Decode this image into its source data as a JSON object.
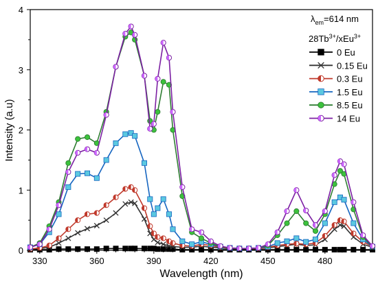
{
  "chart_data": {
    "type": "line",
    "xlabel": "Wavelength (nm)",
    "ylabel": "Intensity (a.u)",
    "xlim": [
      325,
      505
    ],
    "ylim": [
      0,
      4
    ],
    "xticks": [
      330,
      360,
      390,
      420,
      450,
      480
    ],
    "yticks": [
      0,
      1,
      2,
      3,
      4
    ],
    "grid": false,
    "legend_position": "top-right",
    "annotation": {
      "lambda": "λ",
      "sub": "em",
      "rest": "=614  nm"
    },
    "legend_title": {
      "a": "28Tb",
      "a_sup": "3+",
      "b": "/xEu",
      "b_sup": "3+"
    },
    "x": [
      325,
      330,
      335,
      340,
      345,
      350,
      355,
      360,
      365,
      370,
      375,
      378,
      380,
      385,
      388,
      390,
      392,
      395,
      398,
      400,
      405,
      410,
      415,
      420,
      425,
      430,
      435,
      440,
      445,
      450,
      455,
      460,
      465,
      470,
      475,
      480,
      485,
      488,
      490,
      495,
      500,
      505
    ],
    "series": [
      {
        "name": "0 Eu",
        "color": "#000000",
        "marker": "square",
        "values": [
          0.01,
          0.01,
          0.01,
          0.02,
          0.02,
          0.02,
          0.02,
          0.02,
          0.03,
          0.03,
          0.03,
          0.03,
          0.03,
          0.03,
          0.03,
          0.03,
          0.02,
          0.02,
          0.02,
          0.02,
          0.01,
          0.01,
          0.01,
          0.01,
          0.01,
          0.01,
          0.01,
          0.01,
          0.01,
          0.01,
          0.01,
          0.01,
          0.01,
          0.01,
          0.01,
          0.01,
          0.01,
          0.01,
          0.01,
          0.01,
          0.01,
          0.01
        ]
      },
      {
        "name": "0.15 Eu",
        "color": "#333333",
        "marker": "cross",
        "values": [
          0.02,
          0.03,
          0.05,
          0.12,
          0.2,
          0.29,
          0.36,
          0.41,
          0.5,
          0.62,
          0.77,
          0.8,
          0.78,
          0.52,
          0.28,
          0.18,
          0.13,
          0.1,
          0.07,
          0.06,
          0.05,
          0.05,
          0.07,
          0.05,
          0.04,
          0.03,
          0.03,
          0.03,
          0.03,
          0.04,
          0.06,
          0.08,
          0.1,
          0.08,
          0.09,
          0.18,
          0.35,
          0.42,
          0.4,
          0.22,
          0.1,
          0.05
        ]
      },
      {
        "name": "0.3 Eu",
        "color": "#c0392b",
        "marker": "circle-half",
        "values": [
          0.02,
          0.04,
          0.08,
          0.2,
          0.35,
          0.5,
          0.6,
          0.62,
          0.75,
          0.88,
          1.02,
          1.05,
          1.0,
          0.7,
          0.4,
          0.28,
          0.22,
          0.2,
          0.15,
          0.12,
          0.08,
          0.07,
          0.1,
          0.08,
          0.05,
          0.04,
          0.03,
          0.03,
          0.03,
          0.05,
          0.08,
          0.1,
          0.11,
          0.1,
          0.12,
          0.24,
          0.42,
          0.5,
          0.48,
          0.28,
          0.14,
          0.06
        ]
      },
      {
        "name": "1.5 Eu",
        "color": "#1565c0",
        "fill": "#5bc8e0",
        "marker": "square",
        "values": [
          0.05,
          0.1,
          0.3,
          0.6,
          1.05,
          1.27,
          1.28,
          1.2,
          1.5,
          1.78,
          1.93,
          1.95,
          1.9,
          1.45,
          0.85,
          0.6,
          0.7,
          0.85,
          0.6,
          0.35,
          0.15,
          0.1,
          0.14,
          0.1,
          0.06,
          0.04,
          0.03,
          0.03,
          0.04,
          0.06,
          0.12,
          0.15,
          0.2,
          0.14,
          0.18,
          0.45,
          0.8,
          0.88,
          0.84,
          0.45,
          0.18,
          0.06
        ]
      },
      {
        "name": "8.5 Eu",
        "color": "#2e7d32",
        "fill": "#3cc23c",
        "marker": "circle",
        "values": [
          0.05,
          0.12,
          0.4,
          0.8,
          1.45,
          1.85,
          1.88,
          1.78,
          2.3,
          3.05,
          3.55,
          3.62,
          3.5,
          2.9,
          2.15,
          2.0,
          2.3,
          2.8,
          2.75,
          2.0,
          0.9,
          0.3,
          0.2,
          0.12,
          0.06,
          0.04,
          0.03,
          0.03,
          0.04,
          0.08,
          0.25,
          0.45,
          0.65,
          0.45,
          0.32,
          0.6,
          1.1,
          1.32,
          1.27,
          0.68,
          0.22,
          0.06
        ]
      },
      {
        "name": "14 Eu",
        "color": "#7b1fa2",
        "fill": "#cc66ff",
        "marker": "circle-half",
        "values": [
          0.05,
          0.1,
          0.35,
          0.75,
          1.3,
          1.62,
          1.68,
          1.62,
          2.25,
          3.05,
          3.6,
          3.72,
          3.58,
          2.9,
          2.02,
          2.1,
          2.85,
          3.45,
          3.2,
          2.3,
          1.05,
          0.35,
          0.3,
          0.15,
          0.07,
          0.04,
          0.03,
          0.03,
          0.04,
          0.1,
          0.3,
          0.65,
          1.0,
          0.66,
          0.42,
          0.65,
          1.25,
          1.48,
          1.43,
          0.8,
          0.25,
          0.07
        ]
      }
    ]
  }
}
